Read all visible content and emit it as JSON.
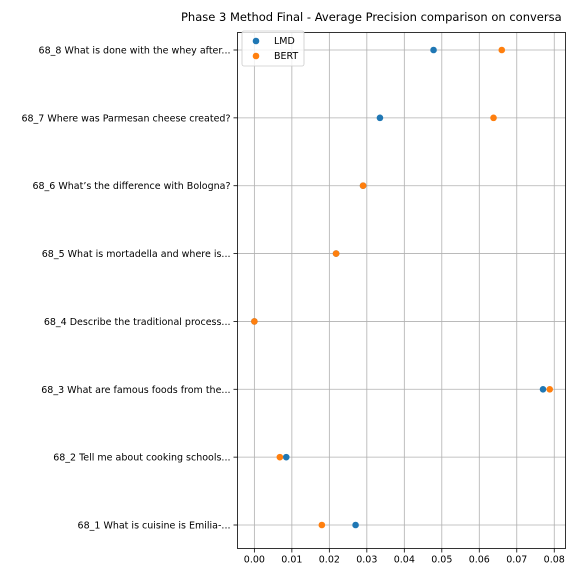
{
  "chart_data": {
    "type": "scatter",
    "title": "Phase 3 Method Final - Average Precision comparison on conversa",
    "xlabel": "",
    "ylabel": "",
    "xlim": [
      -0.0045,
      0.083
    ],
    "xticks": [
      0.0,
      0.01,
      0.02,
      0.03,
      0.04,
      0.05,
      0.06,
      0.07,
      0.08
    ],
    "xtick_labels": [
      "0.00",
      "0.01",
      "0.02",
      "0.03",
      "0.04",
      "0.05",
      "0.06",
      "0.07",
      "0.08"
    ],
    "categories": [
      "68_1 What is cuisine is Emilia-...",
      "68_2 Tell me about cooking schools...",
      "68_3 What are famous foods from the...",
      "68_4 Describe the traditional process...",
      "68_5 What is mortadella and where is...",
      "68_6 What’s the difference with Bologna?",
      "68_7 Where was Parmesan cheese created?",
      "68_8 What is done with the whey after..."
    ],
    "series": [
      {
        "name": "LMD",
        "color": "#1f77b4",
        "values": [
          0.027,
          0.0085,
          0.077,
          0.0,
          0.0218,
          0.029,
          0.0335,
          0.0478
        ]
      },
      {
        "name": "BERT",
        "color": "#ff7f0e",
        "values": [
          0.018,
          0.0068,
          0.0788,
          0.0,
          0.0218,
          0.029,
          0.0638,
          0.066
        ]
      }
    ],
    "grid": true,
    "legend_position": "top-left"
  }
}
